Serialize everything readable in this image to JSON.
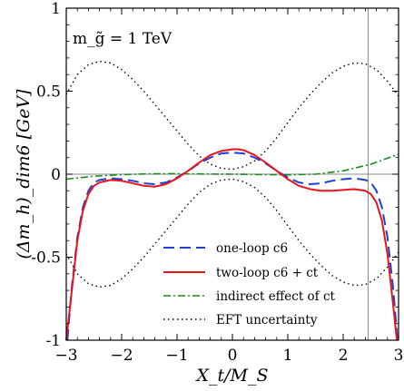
{
  "chart_data": {
    "type": "line",
    "xlabel": "X_t/M_S",
    "ylabel": "(Δm_h)_dim6 [GeV]",
    "annotation": "m_g̃ = 1 TeV",
    "xlim": [
      -3,
      3
    ],
    "ylim": [
      -1,
      1
    ],
    "xticks": [
      -3,
      -2,
      -1,
      0,
      1,
      2,
      3
    ],
    "yticks": [
      -1,
      -0.5,
      0,
      0.5,
      1
    ],
    "xtick_labels": [
      "−3",
      "−2",
      "−1",
      "0",
      "1",
      "2",
      "3"
    ],
    "ytick_labels": [
      "-1",
      "-0.5",
      "0",
      "0.5",
      "1"
    ],
    "reference_lines": {
      "horizontal_y": 0,
      "vertical_x": 2.45
    },
    "legend_position": "bottom-right",
    "series": [
      {
        "name": "one-loop c6",
        "style": "dashed",
        "color": "#1f3fd6",
        "x": [
          -2.98,
          -2.9,
          -2.8,
          -2.7,
          -2.6,
          -2.5,
          -2.4,
          -2.2,
          -2.0,
          -1.8,
          -1.6,
          -1.4,
          -1.2,
          -1.0,
          -0.8,
          -0.6,
          -0.4,
          -0.2,
          0.0,
          0.2,
          0.4,
          0.6,
          0.8,
          1.0,
          1.2,
          1.4,
          1.6,
          1.8,
          2.0,
          2.2,
          2.4,
          2.5,
          2.6,
          2.7,
          2.8,
          2.9,
          2.98
        ],
        "y": [
          -1.0,
          -0.68,
          -0.38,
          -0.2,
          -0.1,
          -0.05,
          -0.035,
          -0.025,
          -0.03,
          -0.04,
          -0.055,
          -0.06,
          -0.05,
          -0.02,
          0.02,
          0.065,
          0.1,
          0.125,
          0.13,
          0.125,
          0.1,
          0.065,
          0.02,
          -0.02,
          -0.05,
          -0.06,
          -0.055,
          -0.04,
          -0.03,
          -0.025,
          -0.035,
          -0.05,
          -0.1,
          -0.2,
          -0.38,
          -0.68,
          -1.0
        ]
      },
      {
        "name": "two-loop c6 + ct",
        "style": "solid",
        "color": "#e8141c",
        "x": [
          -3.0,
          -2.9,
          -2.8,
          -2.7,
          -2.6,
          -2.5,
          -2.4,
          -2.2,
          -2.0,
          -1.8,
          -1.6,
          -1.4,
          -1.2,
          -1.0,
          -0.8,
          -0.6,
          -0.4,
          -0.2,
          0.0,
          0.1,
          0.2,
          0.4,
          0.6,
          0.8,
          1.0,
          1.2,
          1.4,
          1.6,
          1.8,
          2.0,
          2.2,
          2.4,
          2.5,
          2.6,
          2.7,
          2.8,
          2.9,
          2.97
        ],
        "y": [
          -1.0,
          -0.7,
          -0.4,
          -0.22,
          -0.12,
          -0.07,
          -0.05,
          -0.035,
          -0.04,
          -0.055,
          -0.07,
          -0.075,
          -0.06,
          -0.025,
          0.02,
          0.07,
          0.115,
          0.14,
          0.15,
          0.15,
          0.145,
          0.115,
          0.07,
          0.02,
          -0.03,
          -0.07,
          -0.09,
          -0.1,
          -0.1,
          -0.095,
          -0.09,
          -0.1,
          -0.12,
          -0.17,
          -0.28,
          -0.48,
          -0.78,
          -1.0
        ]
      },
      {
        "name": "indirect effect of ct",
        "style": "dashdot",
        "color": "#1a8a1a",
        "x": [
          -3.0,
          -2.5,
          -2.0,
          -1.5,
          -1.0,
          -0.5,
          0.0,
          0.5,
          1.0,
          1.5,
          2.0,
          2.5,
          3.0
        ],
        "y": [
          -0.03,
          -0.012,
          -0.003,
          0.002,
          0.003,
          0.001,
          0.0,
          -0.002,
          -0.004,
          0.0,
          0.02,
          0.06,
          0.12
        ]
      },
      {
        "name": "EFT uncertainty",
        "style": "dotted",
        "color": "#000000",
        "x": [
          -3.0,
          -2.8,
          -2.6,
          -2.4,
          -2.2,
          -2.0,
          -1.8,
          -1.6,
          -1.4,
          -1.2,
          -1.0,
          -0.8,
          -0.6,
          -0.4,
          -0.2,
          0.0,
          0.2,
          0.4,
          0.6,
          0.8,
          1.0,
          1.2,
          1.4,
          1.6,
          1.8,
          2.0,
          2.2,
          2.4,
          2.6,
          2.8,
          3.0
        ],
        "y": [
          0.48,
          0.6,
          0.66,
          0.68,
          0.67,
          0.63,
          0.57,
          0.5,
          0.42,
          0.34,
          0.26,
          0.18,
          0.11,
          0.06,
          0.035,
          0.03,
          0.045,
          0.08,
          0.14,
          0.22,
          0.31,
          0.4,
          0.48,
          0.55,
          0.61,
          0.65,
          0.67,
          0.665,
          0.63,
          0.56,
          0.47
        ],
        "y_lower": [
          -0.48,
          -0.6,
          -0.66,
          -0.68,
          -0.67,
          -0.63,
          -0.57,
          -0.5,
          -0.42,
          -0.34,
          -0.26,
          -0.18,
          -0.11,
          -0.06,
          -0.035,
          -0.03,
          -0.045,
          -0.08,
          -0.14,
          -0.22,
          -0.31,
          -0.4,
          -0.48,
          -0.55,
          -0.61,
          -0.65,
          -0.67,
          -0.665,
          -0.63,
          -0.56,
          -0.47
        ]
      }
    ]
  }
}
